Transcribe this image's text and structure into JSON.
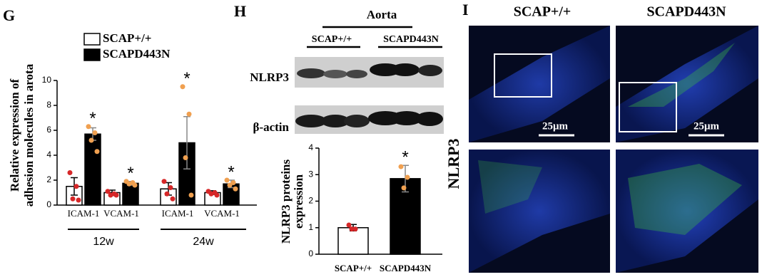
{
  "panels": {
    "G": "G",
    "H": "H",
    "I": "I"
  },
  "chart_data": [
    {
      "type": "bar",
      "ylabel": [
        "Relative expression of",
        "adhesion molecules in arota"
      ],
      "categories": [
        "ICAM-1",
        "VCAM-1",
        "ICAM-1",
        "VCAM-1"
      ],
      "group_labels": [
        "12w",
        "24w"
      ],
      "ylim": [
        0,
        10
      ],
      "yticks": [
        0,
        2,
        4,
        6,
        8,
        10
      ],
      "legend": "top-left",
      "series": [
        {
          "name": "SCAP+/+",
          "color": "#ffffff",
          "point_color": "#d62728",
          "values": [
            1.5,
            1.0,
            1.3,
            1.0
          ],
          "errors": [
            0.7,
            0.2,
            0.5,
            0.15
          ],
          "points": [
            [
              2.6,
              1.5,
              0.5,
              0.4
            ],
            [
              1.1,
              0.9,
              0.8,
              0.8
            ],
            [
              1.9,
              1.4,
              0.9,
              0.5
            ],
            [
              1.1,
              1.0,
              0.9,
              0.8
            ]
          ]
        },
        {
          "name": "SCAPD443N",
          "color": "#000000",
          "point_color": "#f0a050",
          "values": [
            5.7,
            1.75,
            5.0,
            1.7
          ],
          "errors": [
            0.5,
            0.15,
            2.1,
            0.3
          ],
          "points": [
            [
              6.3,
              5.8,
              5.2,
              4.3
            ],
            [
              1.9,
              1.8,
              1.7,
              1.6
            ],
            [
              9.5,
              7.3,
              3.8,
              0.8
            ],
            [
              2.0,
              1.8,
              1.6,
              1.3
            ]
          ],
          "markers": [
            "*",
            "*",
            "*",
            "*"
          ]
        }
      ]
    },
    {
      "type": "bar",
      "ylabel": [
        "NLRP3 proteins",
        "expression"
      ],
      "categories": [
        "SCAP+/+",
        "SCAPD443N"
      ],
      "ylim": [
        0,
        4
      ],
      "yticks": [
        0,
        1,
        2,
        3,
        4
      ],
      "series": [
        {
          "colors": [
            "#ffffff",
            "#000000"
          ],
          "point_colors": [
            "#d62728",
            "#f0a050"
          ],
          "values": [
            1.0,
            2.85
          ],
          "errors": [
            0.12,
            0.5
          ],
          "points": [
            [
              1.1,
              0.95,
              0.95
            ],
            [
              3.3,
              2.9,
              2.5
            ]
          ],
          "markers": [
            null,
            "*"
          ]
        }
      ]
    }
  ],
  "blot": {
    "title": "Aorta",
    "groups": [
      "SCAP+/+",
      "SCAPD443N"
    ],
    "rows": [
      "NLRP3",
      "β-actin"
    ]
  },
  "microscopy": {
    "columns": [
      "SCAP+/+",
      "SCAPD443N"
    ],
    "row_label": "NLRP3",
    "scale_bar": "25μm"
  }
}
